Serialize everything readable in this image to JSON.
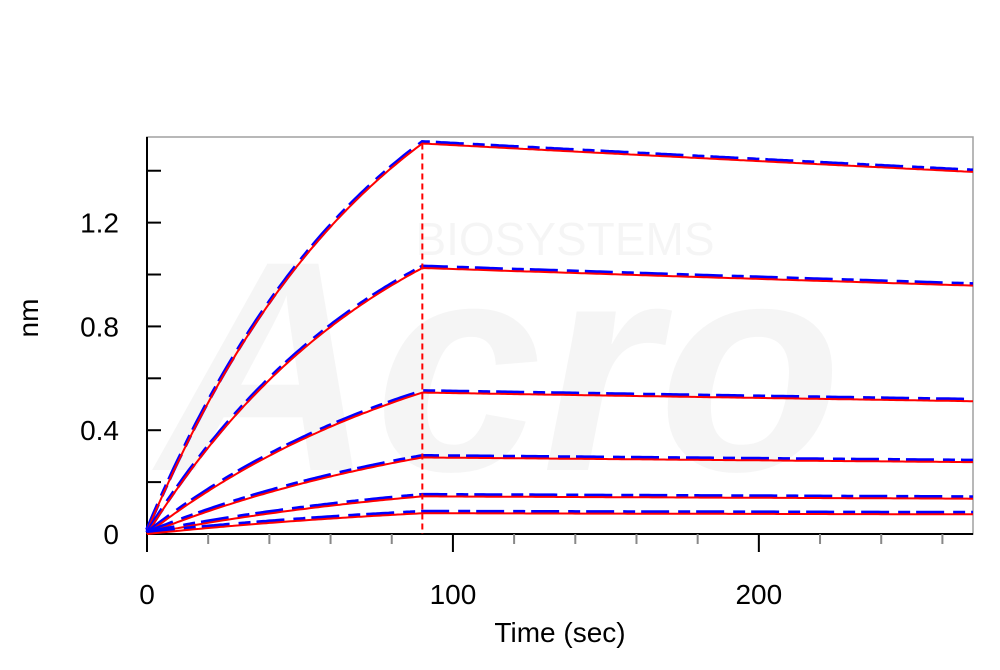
{
  "chart_data": {
    "type": "line",
    "title": "",
    "xlabel": "Time (sec)",
    "ylabel": "nm",
    "xlim": [
      0,
      270
    ],
    "ylim": [
      0,
      1.53
    ],
    "x_ticks_major": [
      0,
      100,
      200
    ],
    "x_tick_labels": [
      "0",
      "100",
      "200"
    ],
    "y_ticks_major": [
      0,
      0.4,
      0.8,
      1.2
    ],
    "y_tick_labels": [
      "0",
      "0.4",
      "0.8",
      "1.2"
    ],
    "grid": false,
    "legend": "none",
    "watermark": "BIOSYSTEMS",
    "watermark_logo": "Acro",
    "association_end": 90,
    "fit_color": "#ff0000",
    "data_color": "#0000ff",
    "series": [
      {
        "plateau": 1.505,
        "k_on": 0.013,
        "k_off": 0.00042,
        "offset": 0.01
      },
      {
        "plateau": 1.025,
        "k_on": 0.0122,
        "k_off": 0.00038,
        "offset": 0.0
      },
      {
        "plateau": 0.545,
        "k_on": 0.0098,
        "k_off": 0.00035,
        "offset": 0.0
      },
      {
        "plateau": 0.295,
        "k_on": 0.009,
        "k_off": 0.00035,
        "offset": 0.0
      },
      {
        "plateau": 0.145,
        "k_on": 0.009,
        "k_off": 0.00035,
        "offset": 0.0
      },
      {
        "plateau": 0.08,
        "k_on": 0.008,
        "k_off": 0.0003,
        "offset": 0.0
      }
    ]
  }
}
